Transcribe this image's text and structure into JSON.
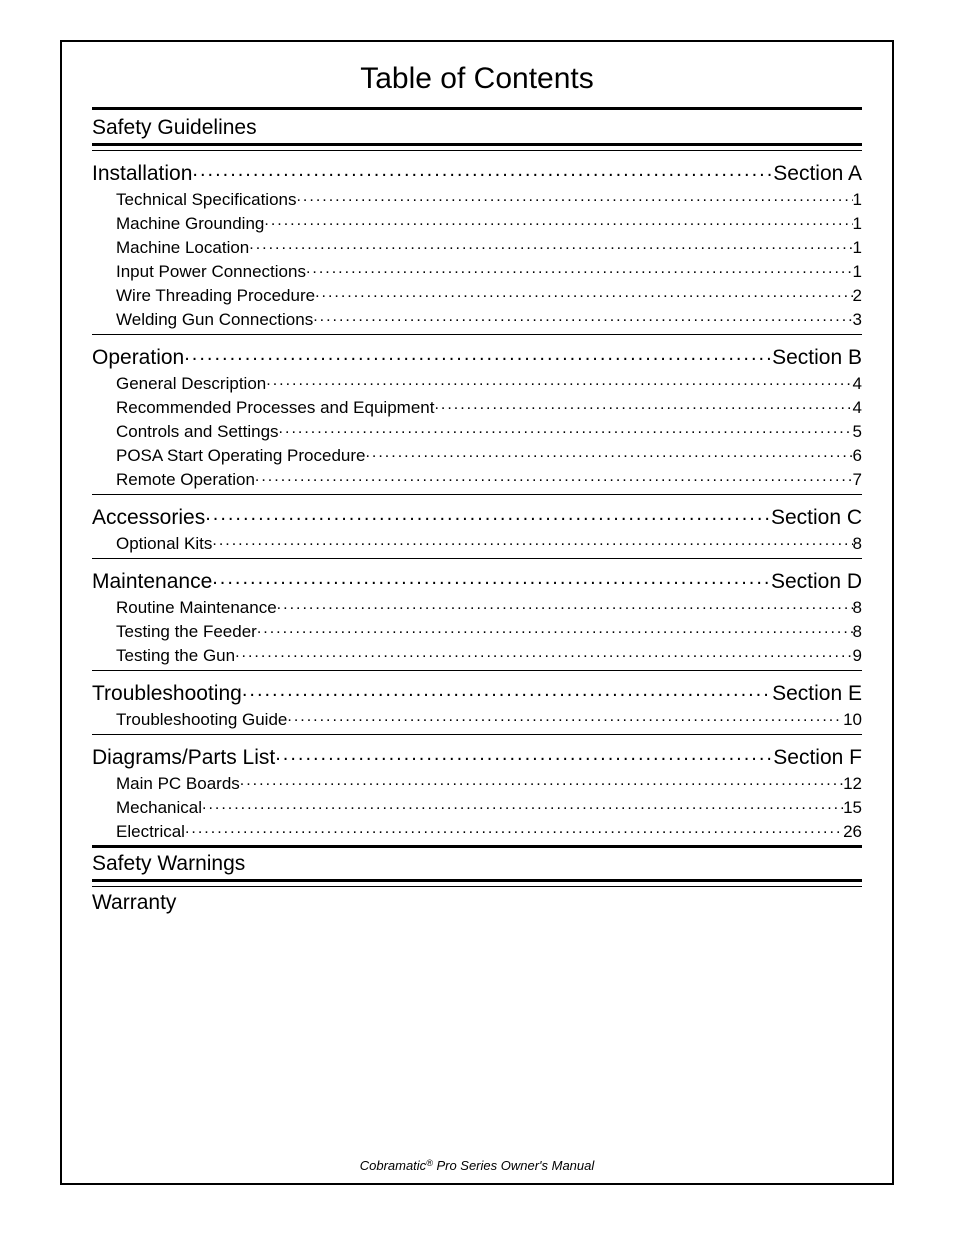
{
  "title": "Table of Contents",
  "top_separators": [
    "thick"
  ],
  "groups": [
    {
      "type": "standalone",
      "label": "Safety Guidelines"
    },
    {
      "type": "sep",
      "style": "thick"
    },
    {
      "type": "sep",
      "style": "thin"
    },
    {
      "type": "section",
      "label": "Installation",
      "value": "Section A",
      "spacer": true,
      "items": [
        {
          "label": "Technical Specifications",
          "value": "1"
        },
        {
          "label": "Machine Grounding",
          "value": "1"
        },
        {
          "label": "Machine Location",
          "value": "1"
        },
        {
          "label": "Input Power Connections",
          "value": "1"
        },
        {
          "label": "Wire Threading Procedure",
          "value": "2"
        },
        {
          "label": "Welding Gun Connections",
          "value": "3"
        }
      ]
    },
    {
      "type": "sep",
      "style": "thin"
    },
    {
      "type": "section",
      "label": "Operation",
      "value": "Section B",
      "items": [
        {
          "label": "General Description",
          "value": "4"
        },
        {
          "label": "Recommended Processes and Equipment",
          "value": "4"
        },
        {
          "label": "Controls and Settings",
          "value": "5"
        },
        {
          "label": "POSA Start Operating Procedure",
          "value": "6"
        },
        {
          "label": "Remote Operation",
          "value": "7"
        }
      ]
    },
    {
      "type": "sep",
      "style": "thin"
    },
    {
      "type": "section",
      "label": "Accessories",
      "value": "Section C",
      "items": [
        {
          "label": "Optional Kits",
          "value": "8"
        }
      ]
    },
    {
      "type": "sep",
      "style": "thin"
    },
    {
      "type": "section",
      "label": "Maintenance",
      "value": "Section D",
      "items": [
        {
          "label": "Routine Maintenance",
          "value": "8"
        },
        {
          "label": "Testing the Feeder",
          "value": "8"
        },
        {
          "label": "Testing the Gun",
          "value": "9"
        }
      ]
    },
    {
      "type": "sep",
      "style": "thin"
    },
    {
      "type": "section",
      "label": "Troubleshooting",
      "value": "Section E",
      "items": [
        {
          "label": "Troubleshooting Guide",
          "value": "10"
        }
      ]
    },
    {
      "type": "sep",
      "style": "thin"
    },
    {
      "type": "section",
      "label": "Diagrams/Parts List",
      "value": "Section F",
      "spacer": true,
      "items": [
        {
          "label": "Main PC Boards",
          "value": "12"
        },
        {
          "label": "Mechanical",
          "value": "15"
        },
        {
          "label": "Electrical",
          "value": "26"
        }
      ]
    },
    {
      "type": "sep",
      "style": "thick"
    },
    {
      "type": "standalone",
      "label": "Safety Warnings"
    },
    {
      "type": "sep",
      "style": "thick"
    },
    {
      "type": "sep",
      "style": "thin"
    },
    {
      "type": "standalone",
      "label": "Warranty"
    }
  ],
  "footer_prefix": "Cobramatic",
  "footer_reg": "®",
  "footer_suffix": " Pro Series Owner's Manual"
}
